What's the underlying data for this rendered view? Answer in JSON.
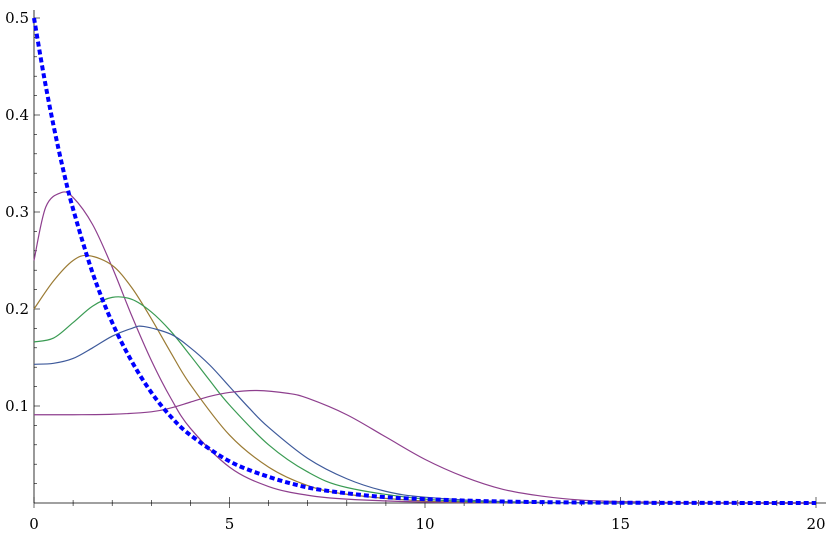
{
  "chart_data": {
    "type": "line",
    "title": "",
    "xlabel": "",
    "ylabel": "",
    "xlim": [
      0,
      20
    ],
    "ylim": [
      0,
      0.5
    ],
    "grid": false,
    "legend": "none",
    "x_ticks": [
      0,
      5,
      10,
      15,
      20
    ],
    "x_tick_labels": [
      "0",
      "5",
      "10",
      "15",
      "20"
    ],
    "y_ticks": [
      0.1,
      0.2,
      0.3,
      0.4,
      0.5
    ],
    "y_tick_labels": [
      "0.1",
      "0.2",
      "0.3",
      "0.4",
      "0.5"
    ],
    "series": [
      {
        "color": "#8e3f8e",
        "style": "solid",
        "x": [
          0,
          0.3,
          0.7,
          1,
          1.5,
          2,
          2.5,
          3,
          3.5,
          4,
          5,
          6,
          7,
          8,
          10,
          12,
          15,
          20
        ],
        "y": [
          0.25,
          0.305,
          0.32,
          0.315,
          0.287,
          0.243,
          0.193,
          0.147,
          0.108,
          0.077,
          0.037,
          0.017,
          0.008,
          0.004,
          0.001,
          0.0003,
          0.0,
          0.0
        ]
      },
      {
        "color": "#9b7b34",
        "style": "solid",
        "x": [
          0,
          0.5,
          1,
          1.4,
          2,
          2.5,
          3,
          3.5,
          4,
          5,
          6,
          7,
          8,
          10,
          12,
          15,
          20
        ],
        "y": [
          0.2,
          0.229,
          0.25,
          0.255,
          0.245,
          0.222,
          0.19,
          0.155,
          0.122,
          0.07,
          0.037,
          0.018,
          0.009,
          0.002,
          0.0005,
          0.0,
          0.0
        ]
      },
      {
        "color": "#3a9b53",
        "style": "solid",
        "x": [
          0,
          0.5,
          1,
          1.5,
          2,
          2.5,
          3,
          3.5,
          4,
          4.5,
          5,
          6,
          7,
          8,
          10,
          12,
          15,
          20
        ],
        "y": [
          0.166,
          0.17,
          0.186,
          0.203,
          0.212,
          0.21,
          0.197,
          0.177,
          0.152,
          0.126,
          0.101,
          0.06,
          0.032,
          0.016,
          0.004,
          0.001,
          0.0,
          0.0
        ]
      },
      {
        "color": "#3e5a9b",
        "style": "solid",
        "x": [
          0,
          0.5,
          1,
          1.5,
          2,
          2.5,
          2.8,
          3.5,
          4,
          4.5,
          5,
          5.5,
          6,
          7,
          8,
          9,
          10,
          12,
          15,
          20
        ],
        "y": [
          0.143,
          0.144,
          0.149,
          0.16,
          0.172,
          0.18,
          0.182,
          0.174,
          0.16,
          0.142,
          0.12,
          0.098,
          0.078,
          0.046,
          0.025,
          0.012,
          0.006,
          0.0015,
          0.0002,
          0.0
        ]
      },
      {
        "color": "#8e3f8e",
        "style": "solid",
        "x": [
          0,
          1,
          2,
          3,
          3.5,
          4,
          4.5,
          5,
          5.7,
          6.5,
          7,
          8,
          9,
          10,
          11,
          12,
          13,
          14,
          15,
          17,
          20
        ],
        "y": [
          0.091,
          0.091,
          0.0915,
          0.094,
          0.098,
          0.104,
          0.11,
          0.114,
          0.116,
          0.113,
          0.108,
          0.091,
          0.068,
          0.045,
          0.027,
          0.014,
          0.007,
          0.003,
          0.0015,
          0.0002,
          0.0
        ]
      },
      {
        "color": "#0000ff",
        "style": "dashed",
        "x": [
          0,
          0.25,
          0.5,
          0.75,
          1,
          1.5,
          2,
          2.5,
          3,
          3.5,
          4,
          5,
          6,
          7,
          8,
          9,
          10,
          12,
          15,
          20
        ],
        "y": [
          0.5,
          0.441,
          0.389,
          0.343,
          0.303,
          0.237,
          0.186,
          0.146,
          0.114,
          0.089,
          0.07,
          0.043,
          0.027,
          0.016,
          0.01,
          0.006,
          0.004,
          0.0015,
          0.0003,
          0.0
        ]
      }
    ]
  }
}
